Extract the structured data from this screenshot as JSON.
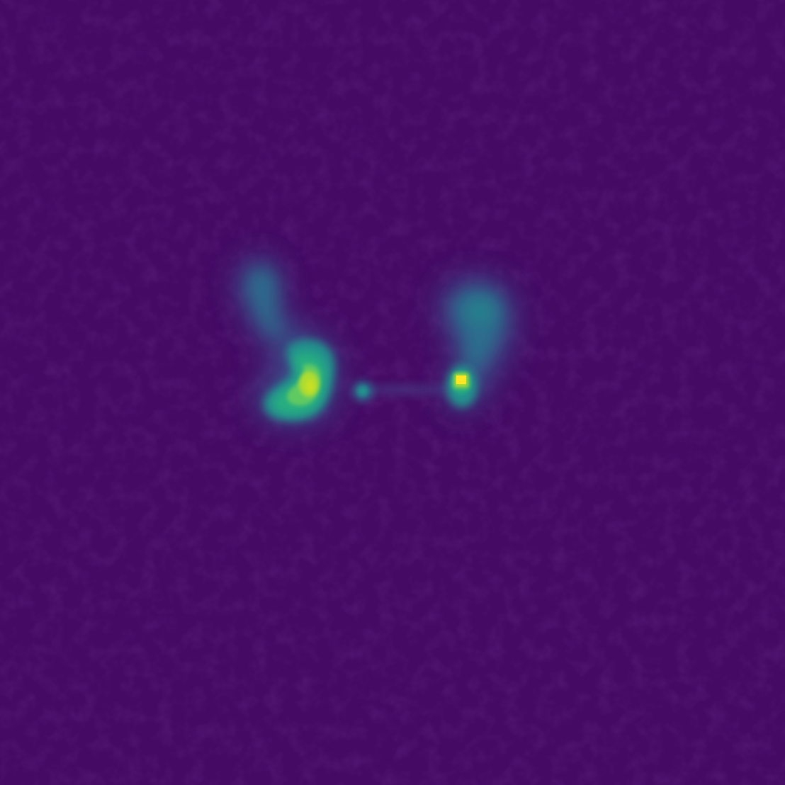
{
  "image": {
    "kind": "radio-astronomy-intensity-map",
    "colormap": "viridis",
    "palette": {
      "background": "#440a64",
      "background_variation": "#3f0d5e",
      "low": "#472d7b",
      "mid_low": "#3b528b",
      "mid": "#2c728e",
      "mid_high": "#21918c",
      "high": "#28ae80",
      "higher": "#5ec962",
      "very_high": "#addc30",
      "peak": "#fde725"
    },
    "features": [
      {
        "name": "left-lobe",
        "peak_level": 0.85,
        "shape": "hooked plume curving down-right"
      },
      {
        "name": "right-lobe",
        "peak_level": 1.0,
        "shape": "compact bright hotspot with diffuse plume above"
      },
      {
        "name": "core",
        "peak_level": 0.35,
        "shape": "small central knot"
      },
      {
        "name": "jet",
        "peak_level": 0.15,
        "shape": "faint bridge connecting lobes"
      }
    ]
  }
}
